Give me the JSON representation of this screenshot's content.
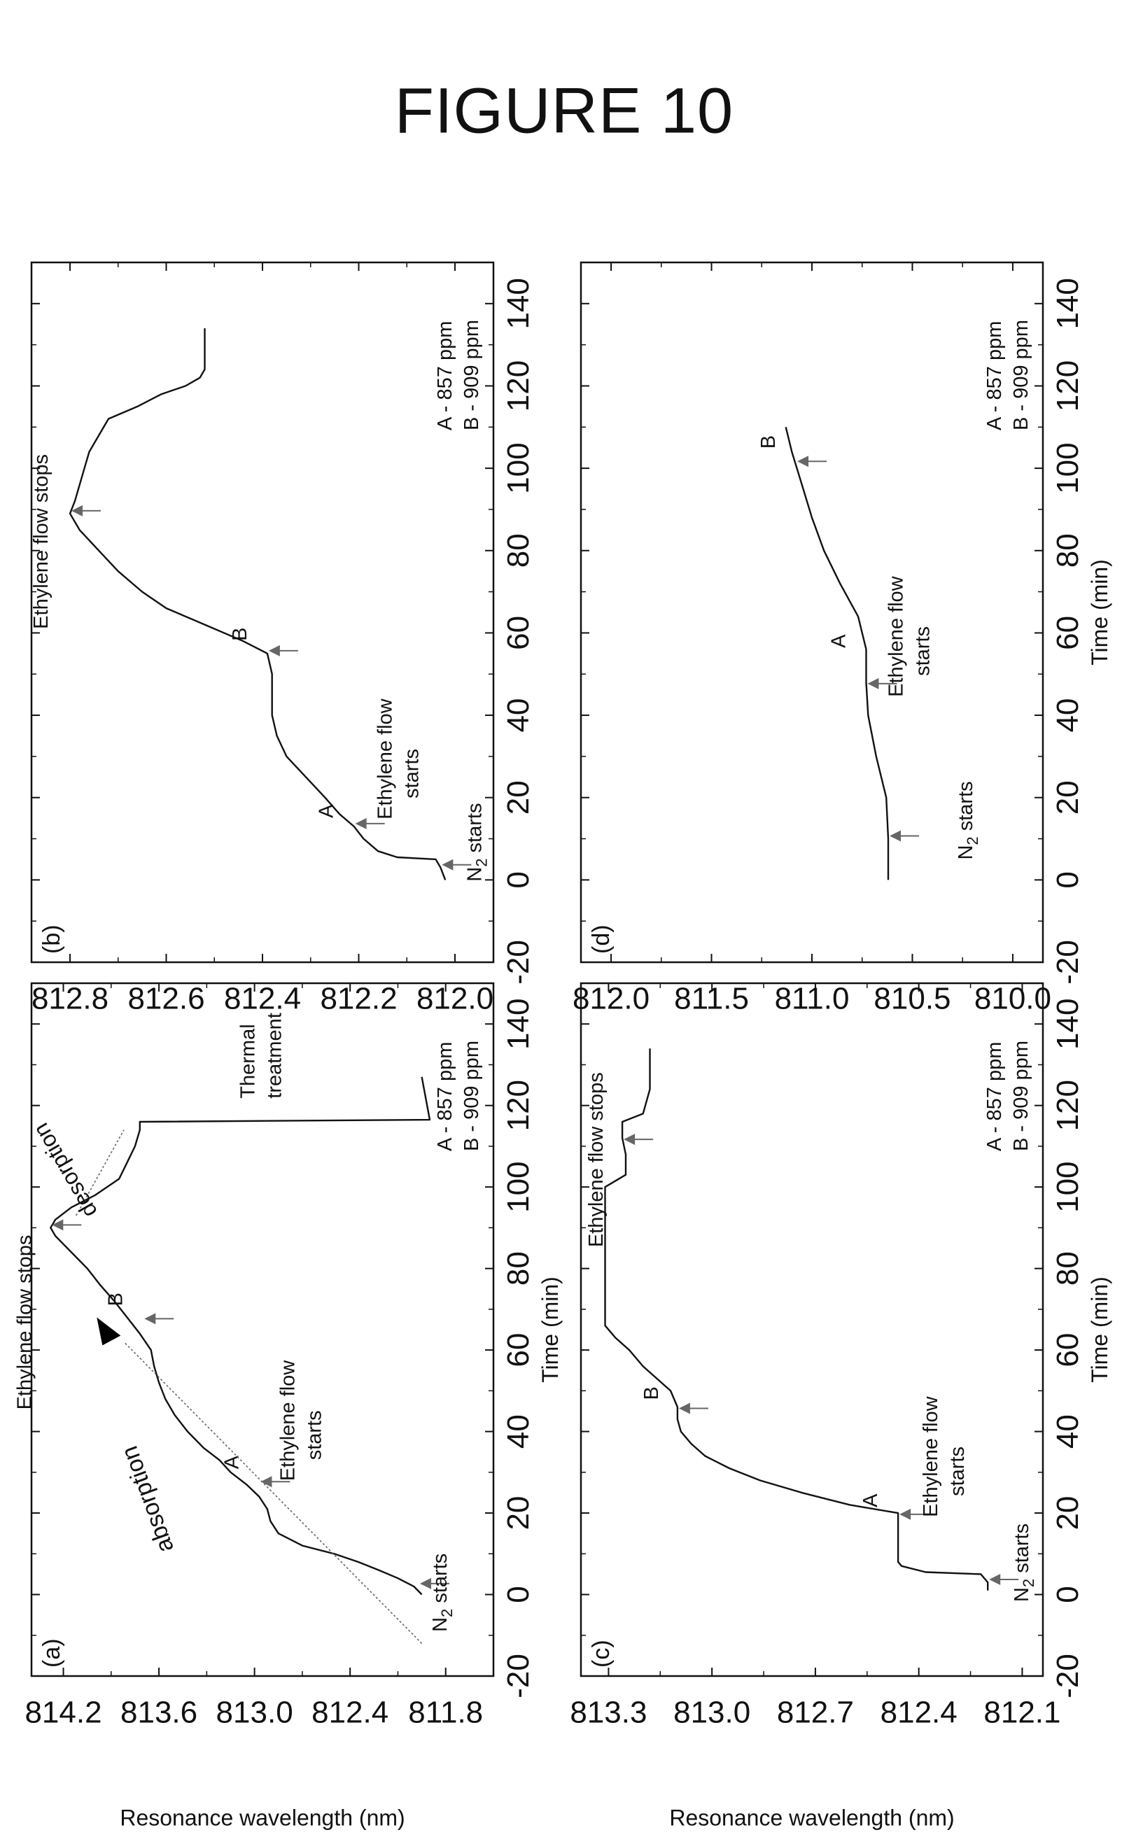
{
  "figure_title": "FIGURE 10",
  "colors": {
    "line": "#111111",
    "arrow": "#666666",
    "frame": "#111111"
  },
  "chart_data": [
    {
      "type": "line",
      "panel": "(a)",
      "xlim": [
        -20,
        150
      ],
      "ylim": [
        811.5,
        814.4
      ],
      "xticks": [
        -20,
        0,
        20,
        40,
        60,
        80,
        100,
        120,
        140
      ],
      "yticks": [
        811.8,
        812.4,
        813.0,
        813.6,
        814.2
      ],
      "ytick_labels": [
        "811.8",
        "812.4",
        "813.0",
        "813.6",
        "814.2"
      ],
      "xlabel": "Time (min)",
      "ylabel": "Resonance wavelength (nm)",
      "x": [
        0,
        2,
        4,
        6,
        8,
        10,
        12,
        15,
        18,
        21,
        24,
        27,
        30,
        33,
        36,
        40,
        44,
        48,
        52,
        56,
        60,
        64,
        68,
        72,
        76,
        80,
        84,
        88,
        90,
        92,
        95,
        98,
        102,
        106,
        110,
        114,
        116,
        116.5,
        127
      ],
      "y": [
        811.95,
        812.0,
        812.1,
        812.22,
        812.35,
        812.5,
        812.7,
        812.85,
        812.9,
        812.92,
        812.97,
        813.05,
        813.15,
        813.22,
        813.32,
        813.42,
        813.5,
        813.56,
        813.6,
        813.63,
        813.65,
        813.72,
        813.8,
        813.88,
        813.97,
        814.05,
        814.15,
        814.25,
        814.28,
        814.25,
        814.15,
        814.0,
        813.85,
        813.8,
        813.75,
        813.72,
        813.72,
        811.9,
        811.95
      ],
      "annotations": [
        {
          "key": "n2",
          "text": "N2 starts",
          "x": 2,
          "y": 811.97
        },
        {
          "key": "a",
          "text": "A",
          "x": 27,
          "y": 812.97
        },
        {
          "key": "eth_start",
          "text": "Ethylene flow starts",
          "x": 27,
          "y": 812.97
        },
        {
          "key": "b",
          "text": "B",
          "x": 67,
          "y": 813.7
        },
        {
          "key": "eth_stop",
          "text": "Ethylene flow stops",
          "x": 90,
          "y": 814.28
        },
        {
          "key": "absorption",
          "text": "absorption"
        },
        {
          "key": "desorption",
          "text": "desorption"
        },
        {
          "key": "thermal",
          "text": "Thermal treatment"
        },
        {
          "key": "legend",
          "text": "A - 857 ppm B - 909 ppm"
        }
      ]
    },
    {
      "type": "line",
      "panel": "(b)",
      "xlim": [
        -20,
        150
      ],
      "ylim": [
        811.92,
        812.88
      ],
      "xticks": [
        -20,
        0,
        20,
        40,
        60,
        80,
        100,
        120,
        140
      ],
      "yticks": [
        812.0,
        812.2,
        812.4,
        812.6,
        812.8
      ],
      "ytick_labels": [
        "812.0",
        "812.2",
        "812.4",
        "812.6",
        "812.8"
      ],
      "xlabel": "",
      "ylabel": "",
      "x": [
        0,
        3,
        5,
        5.5,
        7,
        10,
        13,
        16,
        20,
        25,
        30,
        35,
        40,
        45,
        50,
        55,
        58,
        62,
        66,
        70,
        75,
        80,
        85,
        89,
        92,
        96,
        100,
        104,
        108,
        112,
        115,
        118,
        120,
        122,
        124,
        134
      ],
      "y": [
        812.02,
        812.03,
        812.04,
        812.12,
        812.16,
        812.19,
        812.21,
        812.24,
        812.27,
        812.31,
        812.35,
        812.37,
        812.38,
        812.38,
        812.38,
        812.39,
        812.44,
        812.52,
        812.6,
        812.65,
        812.7,
        812.74,
        812.78,
        812.8,
        812.79,
        812.78,
        812.77,
        812.76,
        812.74,
        812.72,
        812.66,
        812.61,
        812.56,
        812.53,
        812.52,
        812.52
      ],
      "annotations": [
        {
          "key": "n2",
          "text": "N2 starts",
          "x": 3,
          "y": 812.03
        },
        {
          "key": "a",
          "text": "A",
          "x": 13,
          "y": 812.21
        },
        {
          "key": "eth_start",
          "text": "Ethylene flow starts",
          "x": 13,
          "y": 812.21
        },
        {
          "key": "b",
          "text": "B",
          "x": 55,
          "y": 812.39
        },
        {
          "key": "eth_stop",
          "text": "Ethylene flow stops",
          "x": 89,
          "y": 812.8
        },
        {
          "key": "legend",
          "text": "A - 857 ppm B - 909 ppm"
        }
      ]
    },
    {
      "type": "line",
      "panel": "(c)",
      "xlim": [
        -20,
        150
      ],
      "ylim": [
        812.04,
        813.38
      ],
      "xticks": [
        -20,
        0,
        20,
        40,
        60,
        80,
        100,
        120,
        140
      ],
      "yticks": [
        812.1,
        812.4,
        812.7,
        813.0,
        813.3
      ],
      "ytick_labels": [
        "812.1",
        "812.4",
        "812.7",
        "813.0",
        "813.3"
      ],
      "xlabel": "Time (min)",
      "ylabel": "Resonance wavelength (nm)",
      "x": [
        1,
        3,
        5,
        5.5,
        7,
        8,
        10,
        15,
        20,
        22,
        25,
        28,
        31,
        34,
        37,
        40,
        43,
        46,
        50,
        53,
        56,
        60,
        63,
        66,
        70,
        80,
        90,
        100,
        103,
        108,
        112,
        116,
        118,
        124,
        134
      ],
      "y": [
        812.2,
        812.2,
        812.22,
        812.38,
        812.45,
        812.46,
        812.46,
        812.46,
        812.46,
        812.6,
        812.74,
        812.86,
        812.95,
        813.02,
        813.06,
        813.09,
        813.1,
        813.1,
        813.12,
        813.16,
        813.2,
        813.24,
        813.28,
        813.31,
        813.31,
        813.31,
        813.31,
        813.31,
        813.25,
        813.25,
        813.26,
        813.26,
        813.2,
        813.18,
        813.18
      ],
      "annotations": [
        {
          "key": "n2",
          "text": "N2 starts",
          "x": 3,
          "y": 812.2
        },
        {
          "key": "a",
          "text": "A",
          "x": 19,
          "y": 812.46
        },
        {
          "key": "eth_start",
          "text": "Ethylene flow starts",
          "x": 19,
          "y": 812.46
        },
        {
          "key": "b",
          "text": "B",
          "x": 45,
          "y": 813.1
        },
        {
          "key": "eth_stop",
          "text": "Ethylene flow stops",
          "x": 111,
          "y": 813.26
        },
        {
          "key": "legend",
          "text": "A - 857 ppm B - 909 ppm"
        }
      ]
    },
    {
      "type": "line",
      "panel": "(d)",
      "xlim": [
        -20,
        150
      ],
      "ylim": [
        809.85,
        812.15
      ],
      "xticks": [
        -20,
        0,
        20,
        40,
        60,
        80,
        100,
        120,
        140
      ],
      "yticks": [
        810.0,
        810.5,
        811.0,
        811.5,
        812.0
      ],
      "ytick_labels": [
        "810.0",
        "810.5",
        "811.0",
        "811.5",
        "812.0"
      ],
      "xlabel": "Time (min)",
      "ylabel": "",
      "x": [
        0,
        10,
        20,
        30,
        40,
        48,
        56,
        64,
        72,
        80,
        88,
        96,
        104,
        110
      ],
      "y": [
        810.62,
        810.62,
        810.63,
        810.68,
        810.72,
        810.73,
        810.73,
        810.77,
        810.86,
        810.94,
        811.0,
        811.05,
        811.1,
        811.13
      ],
      "annotations": [
        {
          "key": "n2",
          "text": "N2 starts",
          "x": 10,
          "y": 810.62
        },
        {
          "key": "a",
          "text": "A",
          "x": 47,
          "y": 810.73
        },
        {
          "key": "eth_start",
          "text": "Ethylene flow starts",
          "x": 47,
          "y": 810.73
        },
        {
          "key": "b",
          "text": "B",
          "x": 101,
          "y": 811.08
        },
        {
          "key": "legend",
          "text": "A - 857 ppm B - 909 ppm"
        }
      ]
    }
  ]
}
